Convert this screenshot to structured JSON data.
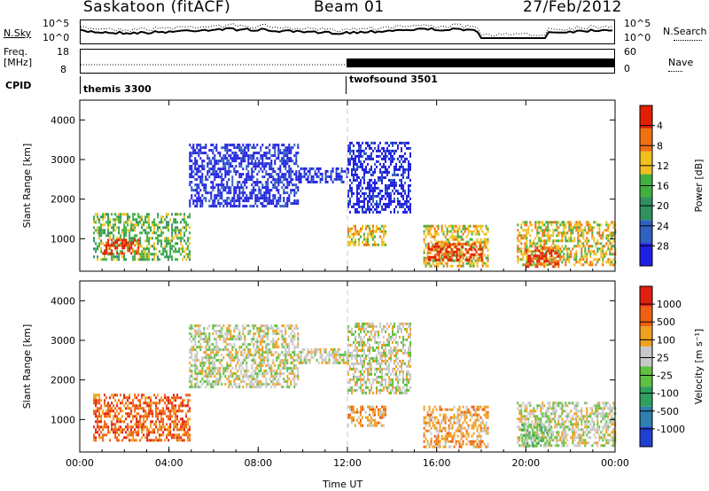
{
  "header": {
    "station": "Saskatoon (fitACF)",
    "beam": "Beam 01",
    "date": "27/Feb/2012"
  },
  "top_panels": {
    "nsky_label": "N.Sky",
    "nsky_scale_top": "10^5",
    "nsky_scale_bottom": "10^0",
    "nsearch_label": "N.Search",
    "nsearch_scale_top": "10^5",
    "nsearch_scale_bottom": "10^0",
    "freq_label_1": "Freq.",
    "freq_label_2": "[MHz]",
    "freq_tick_top": "18",
    "freq_tick_bottom": "8",
    "nave_label": "Nave",
    "nave_tick_top": "60",
    "nave_tick_bottom": "0",
    "cpid_label": "CPID",
    "cpid_modes": [
      {
        "label": "themis 3300",
        "start_hour": 0
      },
      {
        "label": "twofsound 3501",
        "start_hour": 12
      }
    ]
  },
  "colors": {
    "power": [
      "#2020e0",
      "#3060c0",
      "#309060",
      "#40b040",
      "#f0c020",
      "#f07010",
      "#e02000"
    ],
    "velocity": [
      "#2040d0",
      "#3080b0",
      "#30a060",
      "#60c040",
      "#c8c8c8",
      "#f0a020",
      "#f06010",
      "#e02010"
    ]
  },
  "chart_data": [
    {
      "type": "heatmap",
      "title": "",
      "xlabel": "",
      "ylabel": "Slant Range [km]",
      "x_ticks": [
        "00:00",
        "04:00",
        "08:00",
        "12:00",
        "16:00",
        "20:00",
        "00:00"
      ],
      "xlim_hours": [
        0,
        24
      ],
      "y_ticks": [
        "1000",
        "2000",
        "3000",
        "4000"
      ],
      "ylim": [
        180,
        4500
      ],
      "colorbar": {
        "label": "Power [dB]",
        "ticks": [
          "4",
          "8",
          "12",
          "16",
          "20",
          "24",
          "28"
        ],
        "range": [
          0,
          30
        ]
      },
      "echo_regions": [
        {
          "t0": 0.6,
          "t1": 4.9,
          "r0": 450,
          "r1": 1650,
          "level": 3
        },
        {
          "t0": 1.0,
          "t1": 2.6,
          "r0": 600,
          "r1": 1000,
          "level": 6
        },
        {
          "t0": 4.9,
          "t1": 9.8,
          "r0": 1800,
          "r1": 3400,
          "level": 0
        },
        {
          "t0": 9.8,
          "t1": 12.0,
          "r0": 2450,
          "r1": 2800,
          "level": 0
        },
        {
          "t0": 12.0,
          "t1": 14.8,
          "r0": 1700,
          "r1": 3450,
          "level": 0
        },
        {
          "t0": 12.0,
          "t1": 13.7,
          "r0": 850,
          "r1": 1350,
          "level": 4
        },
        {
          "t0": 15.4,
          "t1": 18.3,
          "r0": 330,
          "r1": 1350,
          "level": 4
        },
        {
          "t0": 15.6,
          "t1": 18.0,
          "r0": 450,
          "r1": 900,
          "level": 6
        },
        {
          "t0": 19.6,
          "t1": 24.0,
          "r0": 320,
          "r1": 1450,
          "level": 4
        },
        {
          "t0": 20.0,
          "t1": 21.5,
          "r0": 320,
          "r1": 800,
          "level": 6
        }
      ]
    },
    {
      "type": "heatmap",
      "title": "",
      "xlabel": "Time UT",
      "ylabel": "Slant Range [km]",
      "x_ticks": [
        "00:00",
        "04:00",
        "08:00",
        "12:00",
        "16:00",
        "20:00",
        "00:00"
      ],
      "xlim_hours": [
        0,
        24
      ],
      "y_ticks": [
        "1000",
        "2000",
        "3000",
        "4000"
      ],
      "ylim": [
        180,
        4500
      ],
      "colorbar": {
        "label": "Velocity [m s⁻¹]",
        "ticks": [
          "1000",
          "500",
          "100",
          "25",
          "-25",
          "-100",
          "-500",
          "-1000"
        ],
        "range": [
          -1000,
          1000
        ]
      },
      "echo_regions": [
        {
          "t0": 0.6,
          "t1": 4.9,
          "r0": 450,
          "r1": 1650,
          "level": 6
        },
        {
          "t0": 4.9,
          "t1": 9.8,
          "r0": 1800,
          "r1": 3400,
          "level": 4
        },
        {
          "t0": 9.8,
          "t1": 12.0,
          "r0": 2450,
          "r1": 2800,
          "level": 4
        },
        {
          "t0": 12.0,
          "t1": 14.8,
          "r0": 1700,
          "r1": 3450,
          "level": 4
        },
        {
          "t0": 12.0,
          "t1": 13.7,
          "r0": 850,
          "r1": 1350,
          "level": 5
        },
        {
          "t0": 15.4,
          "t1": 18.3,
          "r0": 330,
          "r1": 1350,
          "level": 5
        },
        {
          "t0": 19.6,
          "t1": 24.0,
          "r0": 320,
          "r1": 1450,
          "level": 4
        },
        {
          "t0": 19.8,
          "t1": 21.0,
          "r0": 320,
          "r1": 900,
          "level": 3
        }
      ]
    }
  ]
}
